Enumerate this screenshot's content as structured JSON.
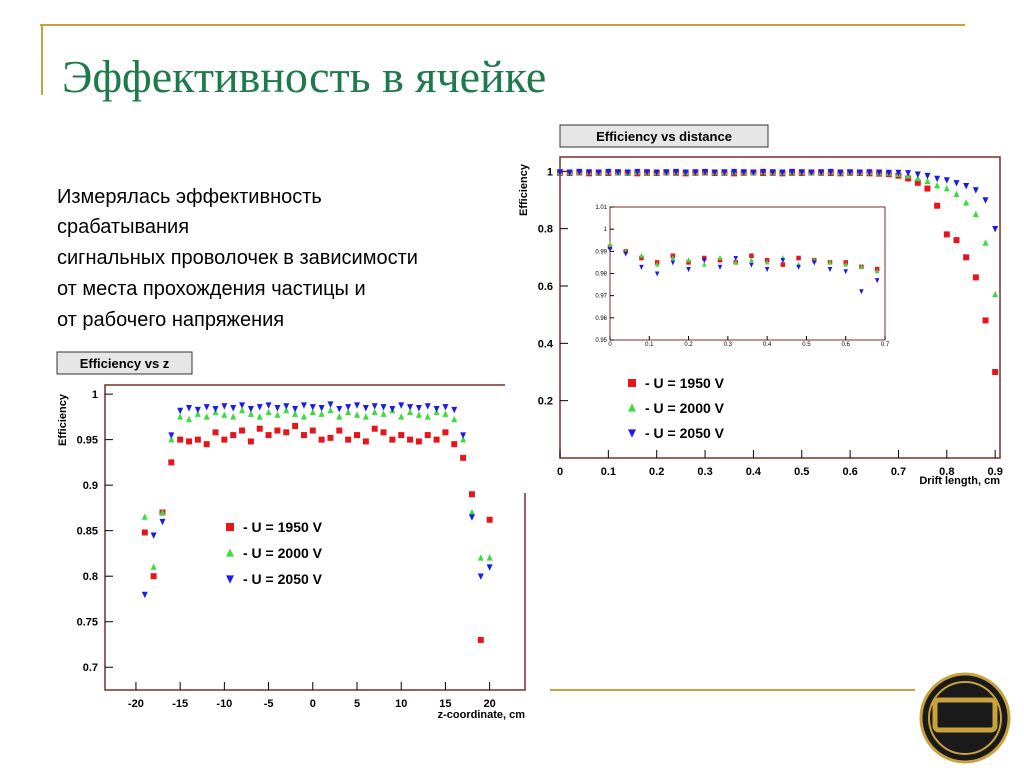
{
  "title": "Эффективность в ячейке",
  "text": [
    "Измерялась эффективность",
    "срабатывания",
    "сигнальных проволочек в зависимости",
    "от места прохождения частицы и",
    "от рабочего напряжения"
  ],
  "chart_data": [
    {
      "type": "scatter",
      "title": "Efficiency vs z",
      "x_label": "z-coordinate, cm",
      "y_label": "Efficiency",
      "xlim": [
        -23.5,
        24
      ],
      "ylim": [
        0.675,
        1.01
      ],
      "xticks": [
        -20,
        -15,
        -10,
        -5,
        0,
        5,
        10,
        15,
        20
      ],
      "yticks": [
        0.7,
        0.75,
        0.8,
        0.85,
        0.9,
        0.95,
        1
      ],
      "grid": false,
      "legend_position": "center",
      "x": [
        -19,
        -18,
        -17,
        -16,
        -15,
        -14,
        -13,
        -12,
        -11,
        -10,
        -9,
        -8,
        -7,
        -6,
        -5,
        -4,
        -3,
        -2,
        -1,
        0,
        1,
        2,
        3,
        4,
        5,
        6,
        7,
        8,
        9,
        10,
        11,
        12,
        13,
        14,
        15,
        16,
        17,
        18,
        19,
        20
      ],
      "series": [
        {
          "name": "-  U = 1950 V",
          "color": "#e8141c",
          "marker": "square",
          "values": [
            0.848,
            0.8,
            0.87,
            0.925,
            0.95,
            0.948,
            0.95,
            0.945,
            0.958,
            0.95,
            0.955,
            0.96,
            0.948,
            0.962,
            0.955,
            0.96,
            0.958,
            0.965,
            0.955,
            0.96,
            0.95,
            0.952,
            0.96,
            0.95,
            0.955,
            0.948,
            0.962,
            0.958,
            0.95,
            0.955,
            0.95,
            0.948,
            0.955,
            0.95,
            0.958,
            0.945,
            0.93,
            0.89,
            0.73,
            0.862
          ]
        },
        {
          "name": "-  U = 2000 V",
          "color": "#3ddc3d",
          "marker": "triangle-up",
          "values": [
            0.865,
            0.81,
            0.87,
            0.95,
            0.975,
            0.972,
            0.978,
            0.975,
            0.98,
            0.977,
            0.975,
            0.982,
            0.978,
            0.975,
            0.98,
            0.977,
            0.982,
            0.978,
            0.975,
            0.98,
            0.978,
            0.982,
            0.975,
            0.98,
            0.977,
            0.975,
            0.98,
            0.978,
            0.982,
            0.975,
            0.98,
            0.977,
            0.975,
            0.98,
            0.978,
            0.972,
            0.95,
            0.87,
            0.82,
            0.82
          ]
        },
        {
          "name": "-  U = 2050 V",
          "color": "#1a1aee",
          "marker": "triangle-down",
          "values": [
            0.78,
            0.845,
            0.86,
            0.955,
            0.982,
            0.985,
            0.983,
            0.986,
            0.984,
            0.987,
            0.985,
            0.988,
            0.984,
            0.986,
            0.988,
            0.985,
            0.987,
            0.984,
            0.988,
            0.986,
            0.985,
            0.989,
            0.984,
            0.986,
            0.988,
            0.985,
            0.987,
            0.986,
            0.984,
            0.988,
            0.986,
            0.985,
            0.987,
            0.984,
            0.986,
            0.983,
            0.955,
            0.865,
            0.8,
            0.81
          ]
        }
      ]
    },
    {
      "type": "scatter",
      "title": "Efficiency vs distance",
      "x_label": "Drift length, cm",
      "y_label": "Efficiency",
      "xlim": [
        0,
        0.91
      ],
      "ylim": [
        0,
        1.05
      ],
      "xticks": [
        0,
        0.1,
        0.2,
        0.3,
        0.4,
        0.5,
        0.6,
        0.7,
        0.8,
        0.9
      ],
      "yticks": [
        0.2,
        0.4,
        0.6,
        0.8,
        1
      ],
      "grid": false,
      "legend_position": "lower-left",
      "x": [
        0,
        0.02,
        0.04,
        0.06,
        0.08,
        0.1,
        0.12,
        0.14,
        0.16,
        0.18,
        0.2,
        0.22,
        0.24,
        0.26,
        0.28,
        0.3,
        0.32,
        0.34,
        0.36,
        0.38,
        0.4,
        0.42,
        0.44,
        0.46,
        0.48,
        0.5,
        0.52,
        0.54,
        0.56,
        0.58,
        0.6,
        0.62,
        0.64,
        0.66,
        0.68,
        0.7,
        0.72,
        0.74,
        0.76,
        0.78,
        0.8,
        0.82,
        0.84,
        0.86,
        0.88,
        0.9
      ],
      "series": [
        {
          "name": "-  U = 1950 V",
          "color": "#e8141c",
          "marker": "square",
          "values": [
            0.995,
            0.994,
            0.996,
            0.993,
            0.995,
            0.994,
            0.996,
            0.995,
            0.993,
            0.995,
            0.994,
            0.996,
            0.995,
            0.993,
            0.995,
            0.996,
            0.994,
            0.995,
            0.993,
            0.995,
            0.996,
            0.994,
            0.995,
            0.993,
            0.995,
            0.994,
            0.996,
            0.995,
            0.994,
            0.993,
            0.995,
            0.994,
            0.993,
            0.992,
            0.99,
            0.985,
            0.975,
            0.96,
            0.94,
            0.88,
            0.78,
            0.76,
            0.7,
            0.63,
            0.48,
            0.3
          ]
        },
        {
          "name": "-  U = 2000 V",
          "color": "#3ddc3d",
          "marker": "triangle-up",
          "values": [
            0.997,
            0.996,
            0.998,
            0.997,
            0.996,
            0.998,
            0.997,
            0.996,
            0.998,
            0.997,
            0.996,
            0.997,
            0.998,
            0.996,
            0.997,
            0.998,
            0.996,
            0.997,
            0.998,
            0.997,
            0.996,
            0.998,
            0.997,
            0.996,
            0.998,
            0.997,
            0.996,
            0.997,
            0.998,
            0.996,
            0.997,
            0.996,
            0.997,
            0.995,
            0.994,
            0.99,
            0.985,
            0.975,
            0.965,
            0.95,
            0.94,
            0.92,
            0.89,
            0.85,
            0.75,
            0.57
          ]
        },
        {
          "name": "-  U = 2050 V",
          "color": "#1a1aee",
          "marker": "triangle-down",
          "values": [
            0.998,
            0.997,
            0.999,
            0.998,
            0.997,
            0.999,
            0.998,
            0.997,
            0.999,
            0.998,
            0.997,
            0.998,
            0.999,
            0.997,
            0.998,
            0.999,
            0.997,
            0.998,
            0.999,
            0.998,
            0.997,
            0.999,
            0.998,
            0.997,
            0.999,
            0.998,
            0.997,
            0.998,
            0.999,
            0.997,
            0.998,
            0.997,
            0.998,
            0.997,
            0.996,
            0.996,
            0.995,
            0.99,
            0.985,
            0.975,
            0.97,
            0.96,
            0.95,
            0.935,
            0.9,
            0.8
          ]
        }
      ]
    },
    {
      "type": "scatter",
      "xlim": [
        0,
        0.7
      ],
      "ylim": [
        0.95,
        1.01
      ],
      "xticks": [
        0,
        0.1,
        0.2,
        0.3,
        0.4,
        0.5,
        0.6,
        0.7
      ],
      "yticks": [
        0.95,
        0.96,
        0.97,
        0.98,
        0.99,
        1,
        1.01
      ],
      "grid": false,
      "x": [
        0,
        0.04,
        0.08,
        0.12,
        0.16,
        0.2,
        0.24,
        0.28,
        0.32,
        0.36,
        0.4,
        0.44,
        0.48,
        0.52,
        0.56,
        0.6,
        0.64,
        0.68
      ],
      "series": [
        {
          "color": "#e8141c",
          "marker": "square",
          "values": [
            0.992,
            0.99,
            0.987,
            0.985,
            0.988,
            0.985,
            0.987,
            0.986,
            0.985,
            0.988,
            0.986,
            0.984,
            0.987,
            0.986,
            0.985,
            0.985,
            0.983,
            0.982
          ]
        },
        {
          "color": "#3ddc3d",
          "marker": "triangle-up",
          "values": [
            0.993,
            0.99,
            0.988,
            0.984,
            0.987,
            0.986,
            0.984,
            0.987,
            0.985,
            0.986,
            0.985,
            0.987,
            0.984,
            0.986,
            0.985,
            0.984,
            0.983,
            0.981
          ]
        },
        {
          "color": "#1a1aee",
          "marker": "triangle-down",
          "values": [
            0.991,
            0.989,
            0.983,
            0.98,
            0.985,
            0.982,
            0.986,
            0.983,
            0.987,
            0.984,
            0.982,
            0.986,
            0.983,
            0.985,
            0.982,
            0.981,
            0.972,
            0.977
          ]
        }
      ]
    }
  ]
}
